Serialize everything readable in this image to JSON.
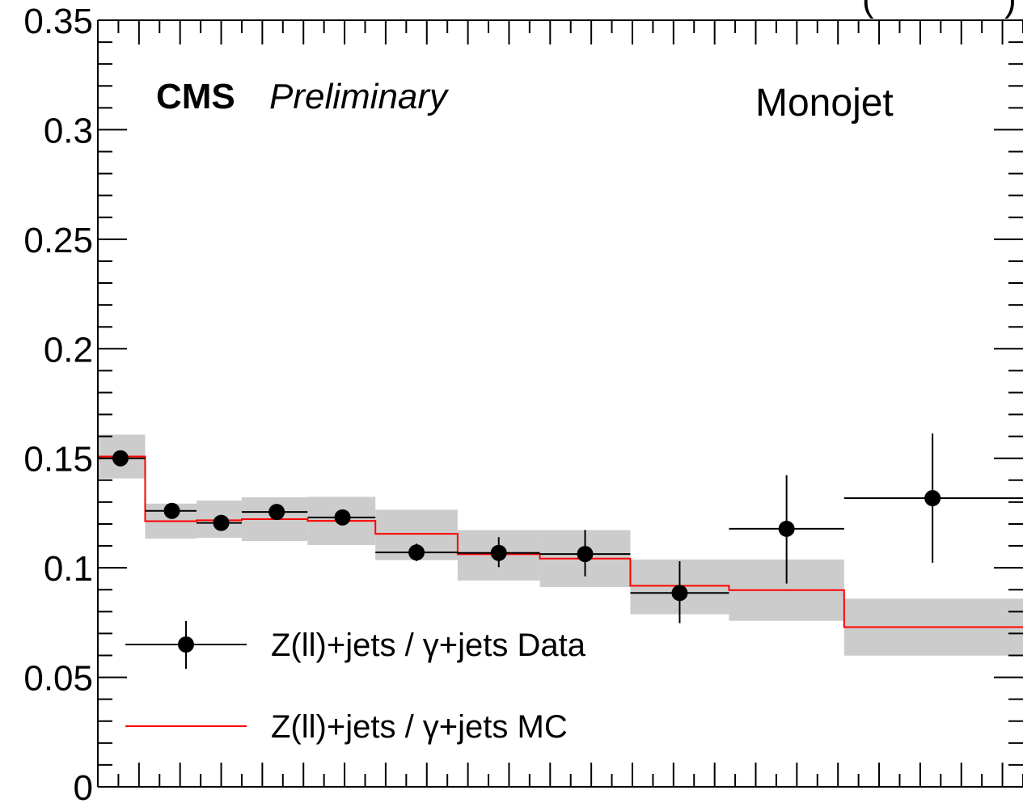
{
  "chart_data": {
    "type": "scatter",
    "experiment_label": "CMS",
    "status_label": "Preliminary",
    "region_label": "Monojet",
    "top_right_fragment": "(",
    "top_right_fragment_end": ")",
    "xlim": [
      0,
      22.5
    ],
    "ylim": [
      0,
      0.35
    ],
    "y_ticks": [
      0,
      0.05,
      0.1,
      0.15,
      0.2,
      0.25,
      0.3,
      0.35
    ],
    "y_tick_labels": [
      "0",
      "0.05",
      "0.1",
      "0.15",
      "0.2",
      "0.25",
      "0.3",
      "0.35"
    ],
    "bin_edges": [
      0,
      1.15,
      2.4,
      3.5,
      5.1,
      6.75,
      8.75,
      10.75,
      12.95,
      15.35,
      18.15,
      22.5
    ],
    "series": [
      {
        "name": "Z(ll)+jets / γ+jets Data",
        "kind": "points",
        "color": "#000000",
        "x": [
          0.55,
          1.8,
          3.0,
          4.35,
          5.95,
          7.75,
          9.75,
          11.85,
          14.15,
          16.75,
          20.3
        ],
        "values": [
          0.15,
          0.126,
          0.1205,
          0.1255,
          0.123,
          0.107,
          0.1068,
          0.1063,
          0.0885,
          0.1178,
          0.1318
        ],
        "err_low": [
          0.0,
          0.0,
          0.0,
          0.0,
          0.0,
          0.004,
          0.0065,
          0.0102,
          0.0138,
          0.025,
          0.0295
        ],
        "err_high": [
          0.0,
          0.0,
          0.0,
          0.0,
          0.0,
          0.004,
          0.0072,
          0.011,
          0.0145,
          0.0245,
          0.0295
        ]
      },
      {
        "name": "Z(ll)+jets / γ+jets MC",
        "kind": "step",
        "color": "#ff0000",
        "values": [
          0.1508,
          0.1213,
          0.1217,
          0.1222,
          0.1214,
          0.1155,
          0.1062,
          0.1042,
          0.0918,
          0.0898,
          0.0729
        ],
        "unc_low": [
          0.1408,
          0.1133,
          0.1137,
          0.1122,
          0.1104,
          0.1035,
          0.0942,
          0.0912,
          0.0788,
          0.0758,
          0.0599
        ],
        "unc_high": [
          0.1608,
          0.1293,
          0.1307,
          0.1322,
          0.1324,
          0.1265,
          0.1172,
          0.1172,
          0.1038,
          0.1038,
          0.0859
        ],
        "band_color": "#cccccc"
      }
    ],
    "legend_position": "bottom-left"
  }
}
